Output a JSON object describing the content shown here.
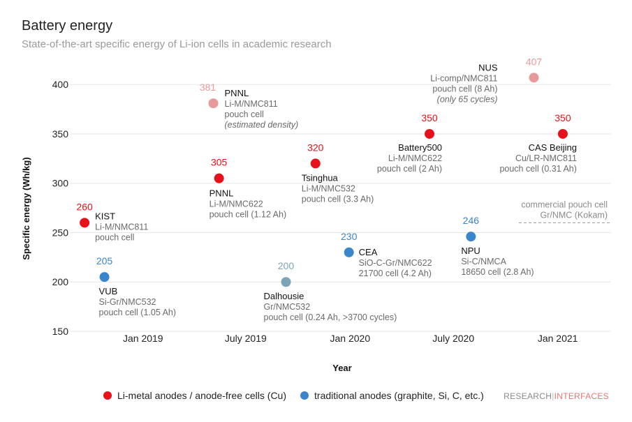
{
  "header": {
    "title": "Battery energy",
    "subtitle": "State-of-the-art specific energy of Li-ion cells in academic research"
  },
  "chart_data": {
    "type": "scatter",
    "xlabel": "Year",
    "ylabel": "Specific energy (Wh/kg)",
    "ylim": [
      150,
      415
    ],
    "xlim": [
      "2018-08-25",
      "2021-04-05"
    ],
    "yticks": [
      150,
      200,
      250,
      300,
      350,
      400
    ],
    "xticks": [
      {
        "date": "2019-01-01",
        "label": "Jan 2019"
      },
      {
        "date": "2019-07-01",
        "label": "July 2019"
      },
      {
        "date": "2020-01-01",
        "label": "Jan 2020"
      },
      {
        "date": "2020-07-01",
        "label": "July 2020"
      },
      {
        "date": "2021-01-01",
        "label": "Jan 2021"
      }
    ],
    "grid": "horizontal",
    "colors": {
      "li_metal": "#e8101a",
      "li_metal_faded": "#e89a9a",
      "traditional": "#3a86cc",
      "traditional_faded": "#7ba4b4"
    },
    "series": [
      {
        "name": "Li-metal anodes / anode-free cells (Cu)",
        "color": "#e8101a"
      },
      {
        "name": "traditional anodes (graphite, Si, C, etc.)",
        "color": "#3a86cc"
      }
    ],
    "points": [
      {
        "date": "2018-09-20",
        "y": 260,
        "value_label": "260",
        "color": "li_metal",
        "name": "KIST",
        "lines": [
          "Li-M/NMC811",
          "pouch cell"
        ]
      },
      {
        "date": "2018-10-25",
        "y": 205,
        "value_label": "205",
        "color": "traditional",
        "name": "VUB",
        "lines": [
          "Si-Gr/NMC532",
          "pouch cell (1.05 Ah)"
        ]
      },
      {
        "date": "2019-05-05",
        "y": 381,
        "value_label": "381",
        "color": "li_metal_faded",
        "name": "PNNL",
        "lines": [
          "Li-M/NMC811",
          "pouch cell",
          "(estimated density)"
        ]
      },
      {
        "date": "2019-05-15",
        "y": 305,
        "value_label": "305",
        "color": "li_metal",
        "name": "PNNL",
        "lines": [
          "Li-M/NMC622",
          "pouch cell (1.12 Ah)"
        ]
      },
      {
        "date": "2019-09-10",
        "y": 200,
        "value_label": "200",
        "color": "traditional_faded",
        "name": "Dalhousie",
        "lines": [
          "Gr/NMC532",
          "pouch cell (0.24 Ah, >3700 cycles)"
        ]
      },
      {
        "date": "2019-11-01",
        "y": 320,
        "value_label": "320",
        "color": "li_metal",
        "name": "Tsinghua",
        "lines": [
          "Li-M/NMC532",
          "pouch cell (3.3 Ah)"
        ]
      },
      {
        "date": "2019-12-30",
        "y": 230,
        "value_label": "230",
        "color": "traditional",
        "name": "CEA",
        "lines": [
          "SiO-C-Gr/NMC622",
          "21700 cell (4.2 Ah)"
        ]
      },
      {
        "date": "2020-05-20",
        "y": 350,
        "value_label": "350",
        "color": "li_metal",
        "name": "Battery500",
        "lines": [
          "Li-M/NMC622",
          "pouch cell (2 Ah)"
        ]
      },
      {
        "date": "2020-08-01",
        "y": 246,
        "value_label": "246",
        "color": "traditional",
        "name": "NPU",
        "lines": [
          "Si-C/NMCA",
          "18650 cell (2.8 Ah)"
        ]
      },
      {
        "date": "2020-11-20",
        "y": 407,
        "value_label": "407",
        "color": "li_metal_faded",
        "name": "NUS",
        "lines": [
          "Li-comp/NMC811",
          "pouch cell (8 Ah)",
          "(only 65 cycles)"
        ]
      },
      {
        "date": "2021-01-10",
        "y": 350,
        "value_label": "350",
        "color": "li_metal",
        "name": "CAS Beijing",
        "lines": [
          "Cu/LR-NMC811",
          "pouch cell (0.31 Ah)"
        ]
      }
    ],
    "reference_line": {
      "y": 260,
      "label1": "commercial pouch cell",
      "label2": "Gr/NMC (Kokam)"
    }
  },
  "legend": {
    "items": [
      {
        "label": "Li-metal anodes / anode-free cells (Cu)",
        "color": "#e8101a"
      },
      {
        "label": "traditional anodes (graphite, Si, C, etc.)",
        "color": "#3a86cc"
      }
    ]
  },
  "brand": {
    "part1": "RESEARCH",
    "sep": "|",
    "part2": "INTERFACES"
  }
}
